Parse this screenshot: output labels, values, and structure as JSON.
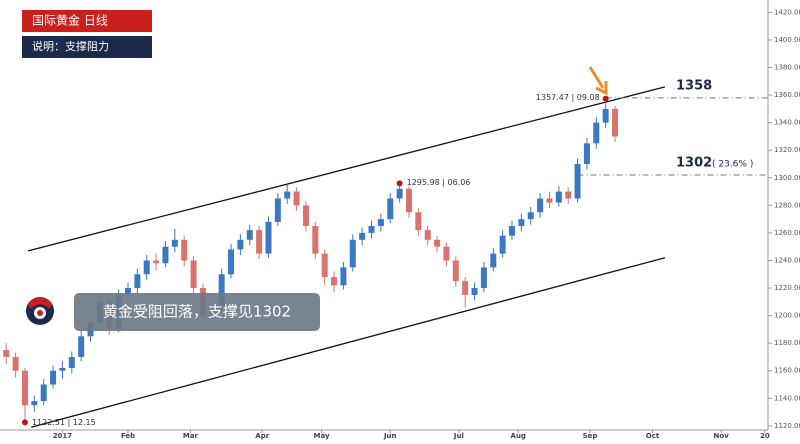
{
  "chart_data": {
    "type": "candlestick",
    "title": "国际黄金 日线",
    "subtitle": "说明：支撑阻力",
    "callout": "黄金受阻回落，支撑见1302",
    "up_color": "#3b78c2",
    "down_color": "#d9736b",
    "xlim": [
      -20,
      226
    ],
    "ylim": [
      1117,
      1429
    ],
    "xticks": [
      {
        "value": 0,
        "label": "2017"
      },
      {
        "value": 21,
        "label": "Feb"
      },
      {
        "value": 41,
        "label": "Mar"
      },
      {
        "value": 64,
        "label": "Apr"
      },
      {
        "value": 83,
        "label": "May"
      },
      {
        "value": 105,
        "label": "Jun"
      },
      {
        "value": 127,
        "label": "Jul"
      },
      {
        "value": 146,
        "label": "Aug"
      },
      {
        "value": 169,
        "label": "Sep"
      },
      {
        "value": 189,
        "label": "Oct"
      },
      {
        "value": 211,
        "label": "Nov"
      },
      {
        "value": 225,
        "label": "20"
      }
    ],
    "yticks": [
      {
        "value": 1120,
        "label": "1120.00"
      },
      {
        "value": 1140,
        "label": "1140.00"
      },
      {
        "value": 1160,
        "label": "1160.00"
      },
      {
        "value": 1180,
        "label": "1180.00"
      },
      {
        "value": 1200,
        "label": "1200.00"
      },
      {
        "value": 1220,
        "label": "1220.00"
      },
      {
        "value": 1240,
        "label": "1240.00"
      },
      {
        "value": 1260,
        "label": "1260.00"
      },
      {
        "value": 1280,
        "label": "1280.00"
      },
      {
        "value": 1300,
        "label": "1300.00"
      },
      {
        "value": 1320,
        "label": "1320.00"
      },
      {
        "value": 1340,
        "label": "1340.00"
      },
      {
        "value": 1360,
        "label": "1360.00"
      },
      {
        "value": 1380,
        "label": "1380.00"
      },
      {
        "value": 1400,
        "label": "1400.00"
      },
      {
        "value": 1420,
        "label": "1420.00"
      }
    ],
    "x": [
      -18,
      -15,
      -12,
      -9,
      -6,
      -3,
      0,
      3,
      6,
      9,
      12,
      15,
      18,
      21,
      24,
      27,
      30,
      33,
      36,
      39,
      42,
      45,
      48,
      51,
      54,
      57,
      60,
      63,
      66,
      69,
      72,
      75,
      78,
      81,
      84,
      87,
      90,
      93,
      96,
      99,
      102,
      105,
      108,
      111,
      114,
      117,
      120,
      123,
      126,
      129,
      132,
      135,
      138,
      141,
      144,
      147,
      150,
      153,
      156,
      159,
      162,
      165,
      168,
      171,
      174,
      177
    ],
    "open": [
      1175,
      1170,
      1160,
      1135,
      1138,
      1150,
      1160,
      1162,
      1170,
      1185,
      1195,
      1210,
      1190,
      1215,
      1220,
      1230,
      1240,
      1238,
      1250,
      1255,
      1240,
      1220,
      1200,
      1205,
      1230,
      1248,
      1255,
      1262,
      1245,
      1268,
      1285,
      1290,
      1280,
      1265,
      1245,
      1228,
      1222,
      1235,
      1255,
      1260,
      1265,
      1270,
      1285,
      1292,
      1275,
      1262,
      1255,
      1250,
      1240,
      1225,
      1215,
      1220,
      1235,
      1245,
      1258,
      1265,
      1270,
      1275,
      1285,
      1282,
      1290,
      1285,
      1310,
      1325,
      1340,
      1350
    ],
    "high": [
      1180,
      1173,
      1162,
      1142,
      1154,
      1164,
      1167,
      1174,
      1189,
      1199,
      1214,
      1213,
      1219,
      1224,
      1234,
      1244,
      1245,
      1254,
      1263,
      1258,
      1243,
      1223,
      1209,
      1234,
      1252,
      1259,
      1266,
      1265,
      1272,
      1289,
      1295,
      1293,
      1283,
      1268,
      1248,
      1232,
      1239,
      1259,
      1264,
      1269,
      1274,
      1289,
      1295.98,
      1294,
      1278,
      1265,
      1258,
      1253,
      1243,
      1228,
      1224,
      1239,
      1249,
      1262,
      1269,
      1274,
      1279,
      1289,
      1290,
      1294,
      1293,
      1314,
      1329,
      1344,
      1357.47,
      1352
    ],
    "low": [
      1165,
      1155,
      1122.51,
      1130,
      1135,
      1147,
      1154,
      1158,
      1167,
      1181,
      1192,
      1186,
      1188,
      1210,
      1216,
      1226,
      1233,
      1235,
      1246,
      1236,
      1216,
      1196,
      1195,
      1202,
      1227,
      1244,
      1251,
      1241,
      1242,
      1265,
      1281,
      1276,
      1261,
      1241,
      1222,
      1217,
      1219,
      1232,
      1251,
      1256,
      1261,
      1267,
      1282,
      1271,
      1258,
      1251,
      1246,
      1236,
      1221,
      1206,
      1211,
      1217,
      1232,
      1242,
      1255,
      1261,
      1266,
      1271,
      1278,
      1279,
      1281,
      1282,
      1306,
      1321,
      1336,
      1326
    ],
    "close": [
      1170,
      1160,
      1135,
      1138,
      1150,
      1160,
      1162,
      1170,
      1185,
      1195,
      1210,
      1190,
      1215,
      1220,
      1230,
      1240,
      1238,
      1250,
      1255,
      1240,
      1220,
      1200,
      1205,
      1230,
      1248,
      1255,
      1262,
      1245,
      1268,
      1285,
      1290,
      1280,
      1265,
      1245,
      1228,
      1222,
      1235,
      1255,
      1260,
      1265,
      1270,
      1285,
      1292,
      1275,
      1262,
      1255,
      1250,
      1240,
      1225,
      1215,
      1220,
      1235,
      1245,
      1258,
      1265,
      1270,
      1275,
      1285,
      1282,
      1290,
      1285,
      1310,
      1325,
      1340,
      1350,
      1330
    ],
    "trendlines": [
      {
        "x": [
          -11,
          193
        ],
        "y": [
          1247,
          1366
        ]
      },
      {
        "x": [
          -10,
          193
        ],
        "y": [
          1119,
          1242
        ]
      }
    ],
    "levels": [
      {
        "value": 1358,
        "label": "1358",
        "start": 174
      },
      {
        "value": 1302,
        "label": "1302",
        "note": "( 23.6% )",
        "start": 165
      }
    ],
    "points": [
      {
        "x": -12,
        "y": 1122.51,
        "label": "1122.51 | 12.15"
      },
      {
        "x": 108,
        "y": 1295.98,
        "label": "1295.98 | 06.06"
      },
      {
        "x": 174,
        "y": 1357.47,
        "label": "1357.47 | 09.08"
      }
    ]
  }
}
